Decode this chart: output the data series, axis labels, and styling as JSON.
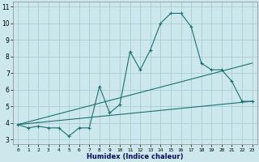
{
  "xlabel": "Humidex (Indice chaleur)",
  "bg_color": "#cce8ec",
  "grid_color": "#aacdd4",
  "line_color": "#1a7070",
  "xlim": [
    -0.5,
    23.5
  ],
  "ylim": [
    2.7,
    11.3
  ],
  "xticks": [
    0,
    1,
    2,
    3,
    4,
    5,
    6,
    7,
    8,
    9,
    10,
    11,
    12,
    13,
    14,
    15,
    16,
    17,
    18,
    19,
    20,
    21,
    22,
    23
  ],
  "yticks": [
    3,
    4,
    5,
    6,
    7,
    8,
    9,
    10,
    11
  ],
  "line1_x": [
    0,
    1,
    2,
    3,
    4,
    5,
    6,
    7,
    8,
    9,
    10,
    11,
    12,
    13,
    14,
    15,
    16,
    17,
    18,
    19,
    20,
    21,
    22,
    23
  ],
  "line1_y": [
    3.9,
    3.7,
    3.8,
    3.7,
    3.7,
    3.2,
    3.7,
    3.7,
    6.2,
    4.6,
    5.1,
    8.3,
    7.2,
    8.4,
    10.0,
    10.6,
    10.6,
    9.8,
    7.6,
    7.2,
    7.2,
    6.5,
    5.3,
    5.3
  ],
  "line2_x": [
    0,
    23
  ],
  "line2_y": [
    3.9,
    7.6
  ],
  "line3_x": [
    0,
    23
  ],
  "line3_y": [
    3.9,
    5.3
  ]
}
